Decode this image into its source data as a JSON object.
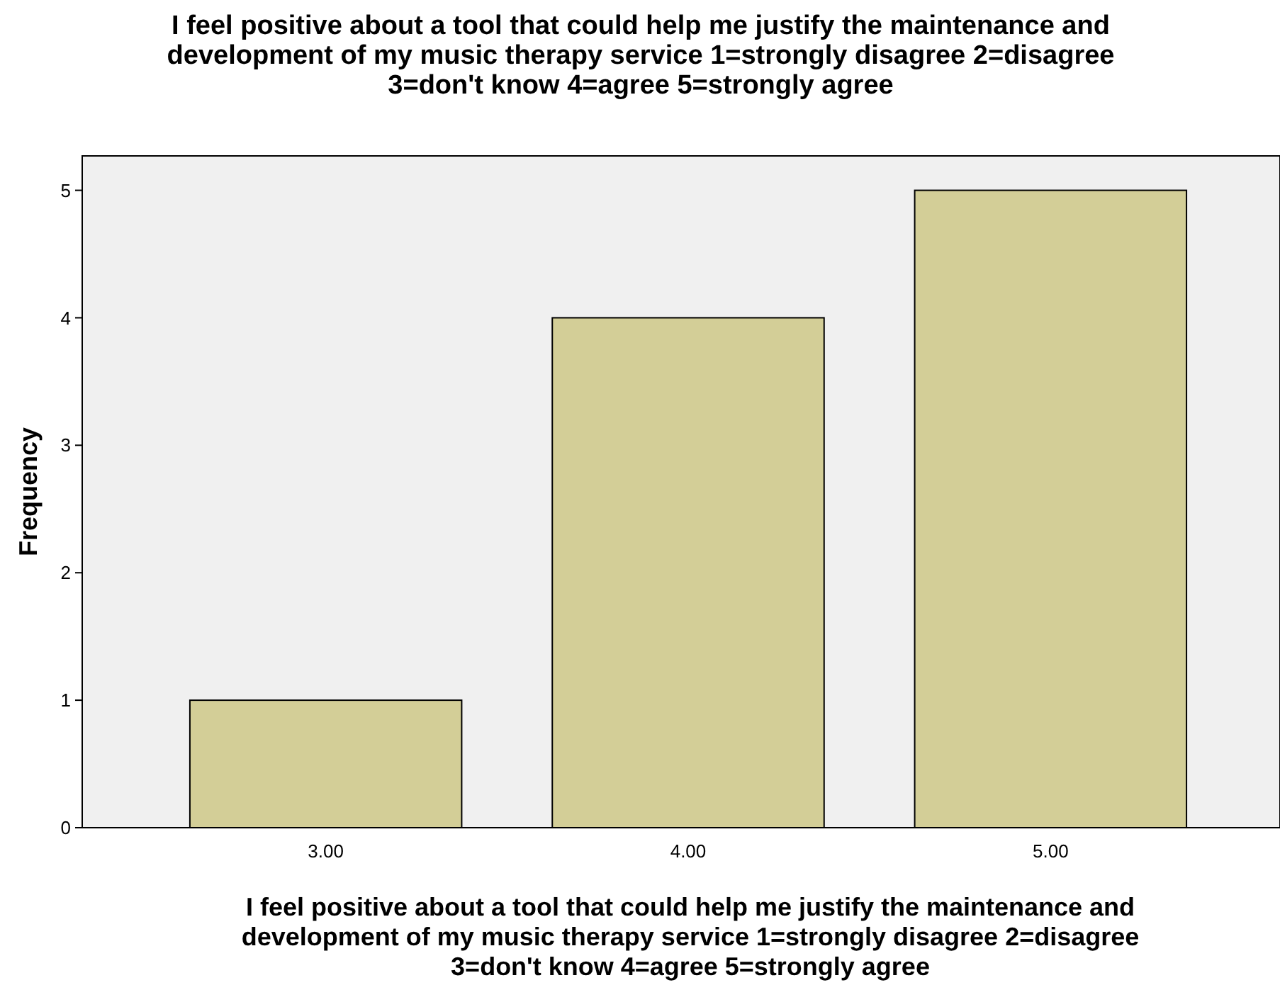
{
  "chart_data": {
    "type": "bar",
    "title": "I feel positive about a tool that could help me justify the maintenance and development of my music therapy service 1=strongly disagree 2=disagree 3=don't know 4=agree 5=strongly agree",
    "xlabel": "I feel positive about a tool that could help me justify the maintenance and development of my music therapy service 1=strongly disagree 2=disagree 3=don't know 4=agree 5=strongly agree",
    "ylabel": "Frequency",
    "categories": [
      "3.00",
      "4.00",
      "5.00"
    ],
    "values": [
      1,
      4,
      5
    ],
    "color": "#d3ce97",
    "ylim": [
      0,
      5.27
    ],
    "yticks": [
      0,
      1,
      2,
      3,
      4,
      5
    ],
    "grid": false
  }
}
